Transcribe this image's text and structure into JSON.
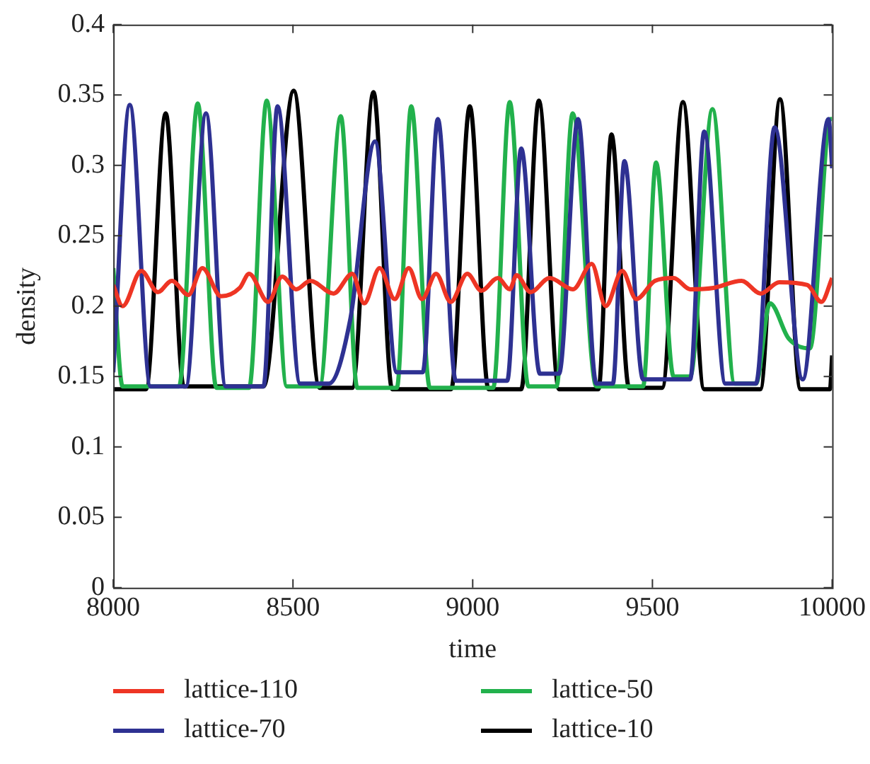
{
  "chart_data": {
    "type": "line",
    "xlabel": "time",
    "ylabel": "density",
    "xlim": [
      8000,
      10000
    ],
    "xticks": [
      8000,
      8500,
      9000,
      9500,
      10000
    ],
    "ylim": [
      0,
      0.4
    ],
    "yticks": [
      0,
      0.05,
      0.1,
      0.15,
      0.2,
      0.25,
      0.3,
      0.35,
      0.4
    ],
    "grid": false,
    "legend": "bottom",
    "marker": "none",
    "line_style": "solid",
    "series": [
      {
        "name": "lattice-110",
        "color": "#ee3524",
        "x": [
          8000,
          8026,
          8078,
          8124,
          8163,
          8209,
          8248,
          8300,
          8352,
          8378,
          8431,
          8470,
          8509,
          8548,
          8613,
          8665,
          8698,
          8741,
          8783,
          8822,
          8859,
          8898,
          8939,
          8985,
          9024,
          9070,
          9103,
          9122,
          9161,
          9214,
          9279,
          9331,
          9370,
          9416,
          9455,
          9507,
          9559,
          9605,
          9670,
          9748,
          9801,
          9853,
          9931,
          9970,
          10000
        ],
        "values": [
          0.215,
          0.2,
          0.225,
          0.21,
          0.218,
          0.208,
          0.227,
          0.207,
          0.213,
          0.223,
          0.203,
          0.221,
          0.212,
          0.218,
          0.209,
          0.223,
          0.202,
          0.227,
          0.205,
          0.227,
          0.205,
          0.223,
          0.203,
          0.223,
          0.211,
          0.22,
          0.212,
          0.222,
          0.21,
          0.22,
          0.212,
          0.23,
          0.2,
          0.225,
          0.205,
          0.218,
          0.22,
          0.212,
          0.213,
          0.218,
          0.209,
          0.217,
          0.215,
          0.203,
          0.22
        ]
      },
      {
        "name": "lattice-70",
        "color": "#2e3192",
        "x": [
          8000,
          8046,
          8104,
          8202,
          8258,
          8313,
          8418,
          8457,
          8520,
          8600,
          8659,
          8728,
          8789,
          8861,
          8903,
          8953,
          9096,
          9135,
          9187,
          9240,
          9293,
          9344,
          9390,
          9422,
          9474,
          9605,
          9644,
          9703,
          9788,
          9840,
          9918,
          9990,
          10000
        ],
        "values": [
          0.153,
          0.343,
          0.143,
          0.143,
          0.337,
          0.143,
          0.143,
          0.342,
          0.145,
          0.145,
          0.19,
          0.317,
          0.153,
          0.153,
          0.333,
          0.147,
          0.147,
          0.312,
          0.152,
          0.152,
          0.333,
          0.145,
          0.145,
          0.303,
          0.148,
          0.148,
          0.324,
          0.145,
          0.145,
          0.327,
          0.148,
          0.333,
          0.298
        ]
      },
      {
        "name": "lattice-50",
        "color": "#22b14c",
        "x": [
          8000,
          8026,
          8183,
          8235,
          8287,
          8378,
          8427,
          8483,
          8574,
          8633,
          8679,
          8789,
          8829,
          8881,
          9057,
          9103,
          9155,
          9233,
          9278,
          9344,
          9474,
          9510,
          9559,
          9605,
          9667,
          9729,
          9788,
          9827,
          9879,
          9938,
          9996,
          10000
        ],
        "values": [
          0.227,
          0.143,
          0.143,
          0.344,
          0.142,
          0.142,
          0.346,
          0.143,
          0.143,
          0.335,
          0.142,
          0.142,
          0.342,
          0.142,
          0.142,
          0.345,
          0.143,
          0.143,
          0.337,
          0.143,
          0.143,
          0.302,
          0.15,
          0.15,
          0.34,
          0.145,
          0.145,
          0.202,
          0.177,
          0.17,
          0.333,
          0.333
        ]
      },
      {
        "name": "lattice-10",
        "color": "#000000",
        "x": [
          8000,
          8091,
          8146,
          8196,
          8418,
          8502,
          8574,
          8665,
          8724,
          8776,
          8940,
          8992,
          9044,
          9135,
          9184,
          9240,
          9350,
          9386,
          9435,
          9527,
          9585,
          9644,
          9800,
          9855,
          9912,
          9994,
          10000
        ],
        "values": [
          0.141,
          0.141,
          0.337,
          0.143,
          0.143,
          0.353,
          0.142,
          0.142,
          0.352,
          0.141,
          0.141,
          0.342,
          0.141,
          0.141,
          0.346,
          0.141,
          0.141,
          0.322,
          0.142,
          0.142,
          0.345,
          0.141,
          0.141,
          0.347,
          0.141,
          0.141,
          0.165
        ]
      }
    ]
  }
}
